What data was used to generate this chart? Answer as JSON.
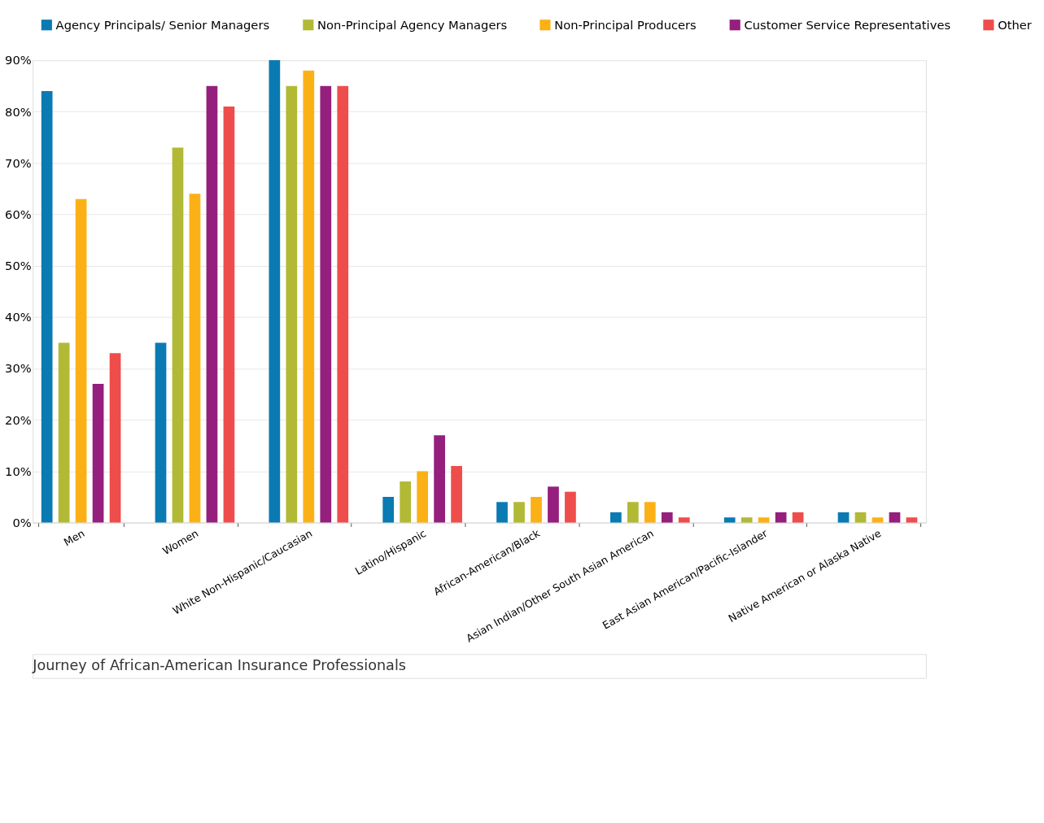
{
  "chart_data": {
    "type": "bar",
    "categories": [
      "Men",
      "Women",
      "White Non-Hispanic/Caucasian",
      "Latino/Hispanic",
      "African-American/Black",
      "Asian Indian/Other South Asian American",
      "East Asian American/Pacific-Islander",
      "Native American or Alaska Native"
    ],
    "series": [
      {
        "name": "Agency Principals/ Senior Managers",
        "color": "#0a7ab3",
        "values": [
          84,
          35,
          90,
          5,
          4,
          2,
          1,
          2
        ]
      },
      {
        "name": "Non-Principal Agency Managers",
        "color": "#b2b935",
        "values": [
          35,
          73,
          85,
          8,
          4,
          4,
          1,
          2
        ]
      },
      {
        "name": "Non-Principal Producers",
        "color": "#fbb116",
        "values": [
          63,
          64,
          88,
          10,
          5,
          4,
          1,
          1
        ]
      },
      {
        "name": "Customer Service Representatives",
        "color": "#951f7d",
        "values": [
          27,
          85,
          85,
          17,
          7,
          2,
          2,
          2
        ]
      },
      {
        "name": "Other",
        "color": "#ee4d4b",
        "values": [
          33,
          81,
          85,
          11,
          6,
          1,
          2,
          1
        ]
      }
    ],
    "ylim": [
      0,
      90
    ],
    "yticks": [
      {
        "value": 0,
        "label": "0%"
      },
      {
        "value": 10,
        "label": "10%"
      },
      {
        "value": 20,
        "label": "20%"
      },
      {
        "value": 30,
        "label": "30%"
      },
      {
        "value": 40,
        "label": "40%"
      },
      {
        "value": 50,
        "label": "50%"
      },
      {
        "value": 60,
        "label": "60%"
      },
      {
        "value": 70,
        "label": "70%"
      },
      {
        "value": 80,
        "label": "80%"
      },
      {
        "value": 90,
        "label": "90%"
      }
    ],
    "grid": "y",
    "legend": "top",
    "annotations": [
      "Journey of African-American Insurance Professionals"
    ]
  }
}
